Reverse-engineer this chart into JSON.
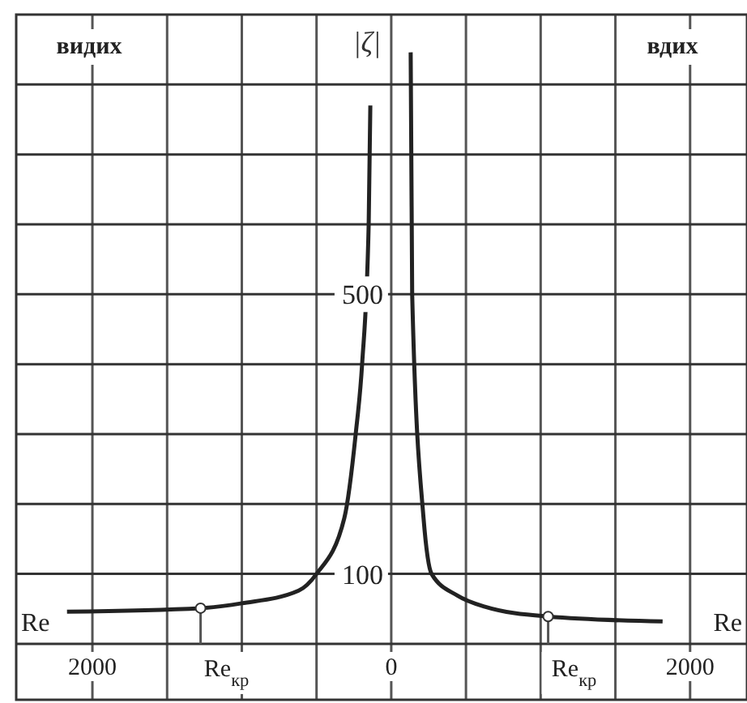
{
  "chart_data": {
    "type": "line",
    "xlabel": "Re",
    "ylabel": "|ζ|",
    "xlim": [
      -2510,
      2370
    ],
    "ylim": [
      -80,
      900
    ],
    "xticks": [
      {
        "value": -2000,
        "label": "2000"
      },
      {
        "value": -1500,
        "label": null
      },
      {
        "value": -1000,
        "label": null
      },
      {
        "value": -500,
        "label": null
      },
      0,
      {
        "value": 500,
        "label": null
      },
      {
        "value": 1000,
        "label": null
      },
      {
        "value": 1500,
        "label": null
      },
      2000
    ],
    "yticks": [
      {
        "value": 0,
        "label": null
      },
      100,
      {
        "value": 200,
        "label": null
      },
      {
        "value": 300,
        "label": null
      },
      {
        "value": 400,
        "label": null
      },
      500,
      {
        "value": 600,
        "label": null
      },
      {
        "value": 700,
        "label": null
      },
      {
        "value": 800,
        "label": null
      }
    ],
    "grid": true,
    "marker": "none",
    "line_style": "solid",
    "series": [
      {
        "color": "#222222",
        "x": [
          -2170,
          -1276,
          -1000,
          -620,
          -500,
          -314,
          -238,
          -195,
          -151,
          -140
        ],
        "values": [
          46,
          51,
          58,
          76,
          100,
          180,
          300,
          400,
          600,
          770
        ]
      },
      {
        "color": "#222222",
        "x": [
          130,
          140,
          216,
          270,
          443,
          627,
          1050,
          1816
        ],
        "values": [
          846,
          500,
          180,
          100,
          69,
          53,
          39,
          32
        ]
      }
    ],
    "annotations": [
      "видих",
      "вдих",
      {
        "text": "Re$_{кр}$",
        "x": -1276,
        "y": 51
      },
      {
        "text": "Re$_{кр}$",
        "x": 1050,
        "y": 39
      }
    ]
  }
}
